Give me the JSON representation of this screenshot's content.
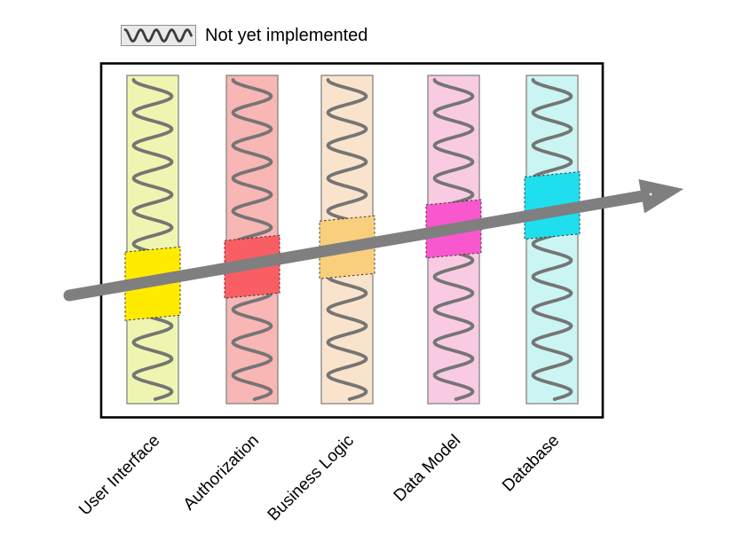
{
  "legend": {
    "swatch": "squiggle-pattern",
    "squiggle_color": "#3C3C3C",
    "swatch_bg": "#E9E9E9",
    "label": "Not yet implemented"
  },
  "frame": {
    "border_color": "#000000"
  },
  "layers": [
    {
      "label": "User Interface",
      "fill": "#EFF5B0",
      "highlight": "#FFEB00"
    },
    {
      "label": "Authorization",
      "fill": "#F8B6B4",
      "highlight": "#F95E64"
    },
    {
      "label": "Business Logic",
      "fill": "#FAE3CC",
      "highlight": "#F9CF7E"
    },
    {
      "label": "Data Model",
      "fill": "#F9CBE3",
      "highlight": "#F957CE"
    },
    {
      "label": "Database",
      "fill": "#CBF5F2",
      "highlight": "#1FDFEE"
    }
  ],
  "squiggle_color": "#757575",
  "column_border_color": "#8C8C8C",
  "arrow": {
    "color": "#7F7F7F",
    "direction": "up-right"
  }
}
